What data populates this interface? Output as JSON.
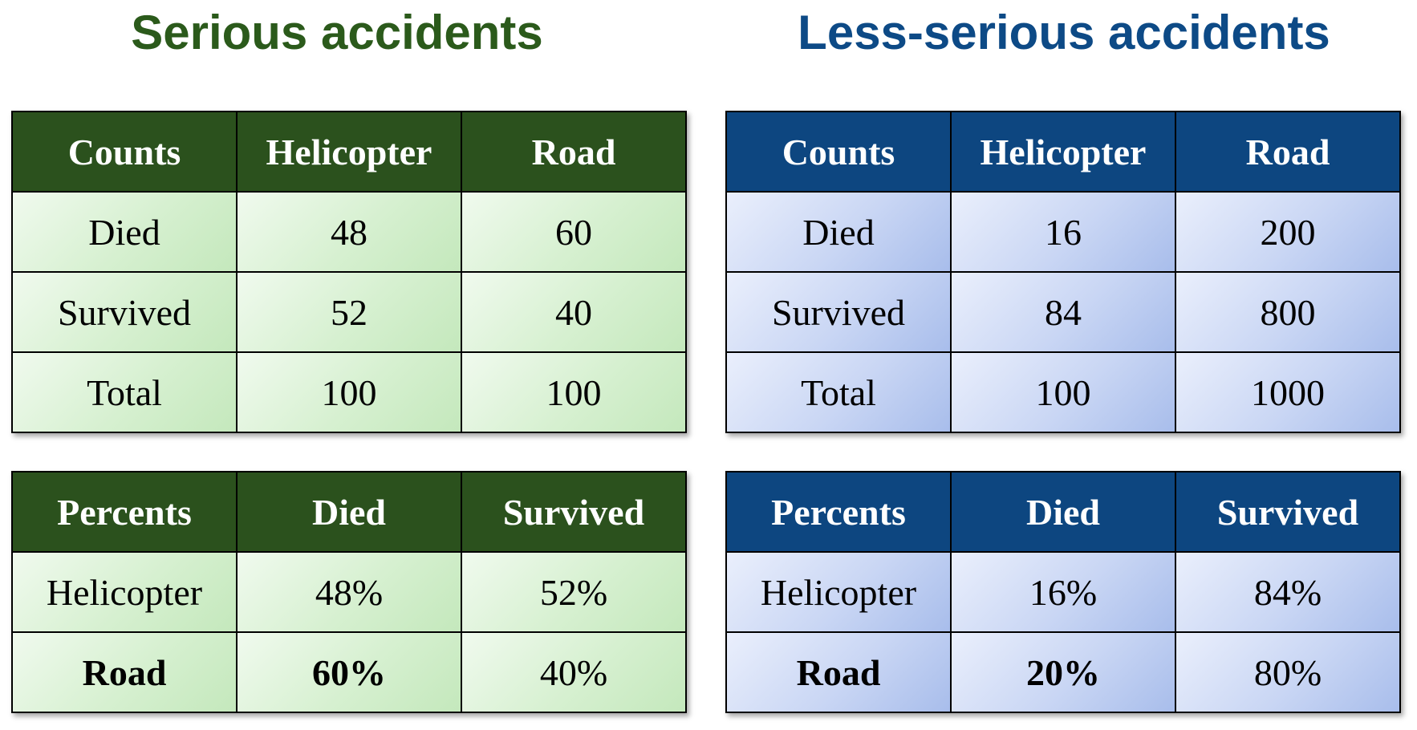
{
  "serious": {
    "title": "Serious accidents",
    "counts": {
      "header": [
        "Counts",
        "Helicopter",
        "Road"
      ],
      "rows": [
        [
          "Died",
          "48",
          "60"
        ],
        [
          "Survived",
          "52",
          "40"
        ],
        [
          "Total",
          "100",
          "100"
        ]
      ]
    },
    "percents": {
      "header": [
        "Percents",
        "Died",
        "Survived"
      ],
      "rows": [
        [
          "Helicopter",
          "48%",
          "52%"
        ],
        [
          "Road",
          "60%",
          "40%"
        ]
      ]
    }
  },
  "less_serious": {
    "title": "Less-serious accidents",
    "counts": {
      "header": [
        "Counts",
        "Helicopter",
        "Road"
      ],
      "rows": [
        [
          "Died",
          "16",
          "200"
        ],
        [
          "Survived",
          "84",
          "800"
        ],
        [
          "Total",
          "100",
          "1000"
        ]
      ]
    },
    "percents": {
      "header": [
        "Percents",
        "Died",
        "Survived"
      ],
      "rows": [
        [
          "Helicopter",
          "16%",
          "84%"
        ],
        [
          "Road",
          "20%",
          "80%"
        ]
      ]
    }
  },
  "colors": {
    "serious_accent": "#2b5a1b",
    "less_serious_accent": "#0d4a86"
  }
}
